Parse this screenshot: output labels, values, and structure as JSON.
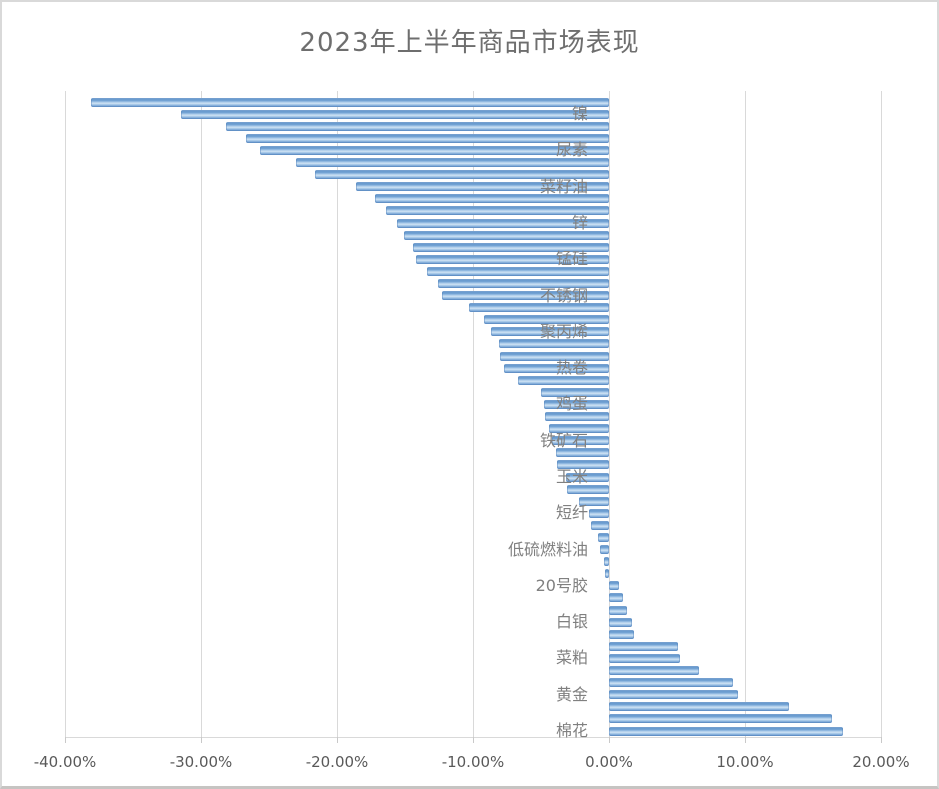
{
  "chart": {
    "title": "2023年上半年商品市场表现"
  },
  "style": {
    "bar_color": "#6f9fd8",
    "bar_highlight": "#cfe2f4",
    "grid_color": "#d9d9d9",
    "axis_text_color": "#595959",
    "category_text_color": "#808080",
    "title_color": "#6e6e6e",
    "background": "#ffffff"
  },
  "chart_data": {
    "type": "bar",
    "orientation": "horizontal",
    "title": "2023年上半年商品市场表现",
    "xlabel": "",
    "ylabel": "",
    "grid": "vertical-on",
    "legend": "none",
    "x_axis": {
      "unit": "%",
      "min": -40,
      "max": 20,
      "tick_values": [
        -40,
        -30,
        -20,
        -10,
        0,
        10,
        20
      ],
      "tick_labels": [
        "-40.00%",
        "-30.00%",
        "-20.00%",
        "-10.00%",
        "0.00%",
        "10.00%",
        "20.00%"
      ]
    },
    "category_label_interval": 3,
    "items": [
      {
        "label": "",
        "value": -38.1
      },
      {
        "label": "镍",
        "value": -31.5
      },
      {
        "label": "",
        "value": -28.2
      },
      {
        "label": "",
        "value": -26.7
      },
      {
        "label": "尿素",
        "value": -25.7
      },
      {
        "label": "",
        "value": -23.0
      },
      {
        "label": "",
        "value": -21.6
      },
      {
        "label": "菜籽油",
        "value": -18.6
      },
      {
        "label": "",
        "value": -17.2
      },
      {
        "label": "",
        "value": -16.4
      },
      {
        "label": "锌",
        "value": -15.6
      },
      {
        "label": "",
        "value": -15.1
      },
      {
        "label": "",
        "value": -14.4
      },
      {
        "label": "锰硅",
        "value": -14.2
      },
      {
        "label": "",
        "value": -13.4
      },
      {
        "label": "",
        "value": -12.6
      },
      {
        "label": "不锈钢",
        "value": -12.3
      },
      {
        "label": "",
        "value": -10.3
      },
      {
        "label": "",
        "value": -9.2
      },
      {
        "label": "聚丙烯",
        "value": -8.7
      },
      {
        "label": "",
        "value": -8.1
      },
      {
        "label": "",
        "value": -8.0
      },
      {
        "label": "热卷",
        "value": -7.7
      },
      {
        "label": "",
        "value": -6.7
      },
      {
        "label": "",
        "value": -5.0
      },
      {
        "label": "鸡蛋",
        "value": -4.8
      },
      {
        "label": "",
        "value": -4.7
      },
      {
        "label": "",
        "value": -4.4
      },
      {
        "label": "铁矿石",
        "value": -4.2
      },
      {
        "label": "",
        "value": -3.9
      },
      {
        "label": "",
        "value": -3.8
      },
      {
        "label": "玉米",
        "value": -3.2
      },
      {
        "label": "",
        "value": -3.1
      },
      {
        "label": "",
        "value": -2.2
      },
      {
        "label": "短纤",
        "value": -1.5
      },
      {
        "label": "",
        "value": -1.3
      },
      {
        "label": "",
        "value": -0.8
      },
      {
        "label": "低硫燃料油",
        "value": -0.7
      },
      {
        "label": "",
        "value": -0.4
      },
      {
        "label": "",
        "value": -0.3
      },
      {
        "label": "20号胶",
        "value": 0.7
      },
      {
        "label": "",
        "value": 1.0
      },
      {
        "label": "",
        "value": 1.3
      },
      {
        "label": "白银",
        "value": 1.7
      },
      {
        "label": "",
        "value": 1.8
      },
      {
        "label": "",
        "value": 5.1
      },
      {
        "label": "菜粕",
        "value": 5.2
      },
      {
        "label": "",
        "value": 6.6
      },
      {
        "label": "",
        "value": 9.1
      },
      {
        "label": "黄金",
        "value": 9.5
      },
      {
        "label": "",
        "value": 13.2
      },
      {
        "label": "",
        "value": 16.4
      },
      {
        "label": "棉花",
        "value": 17.2
      }
    ]
  }
}
